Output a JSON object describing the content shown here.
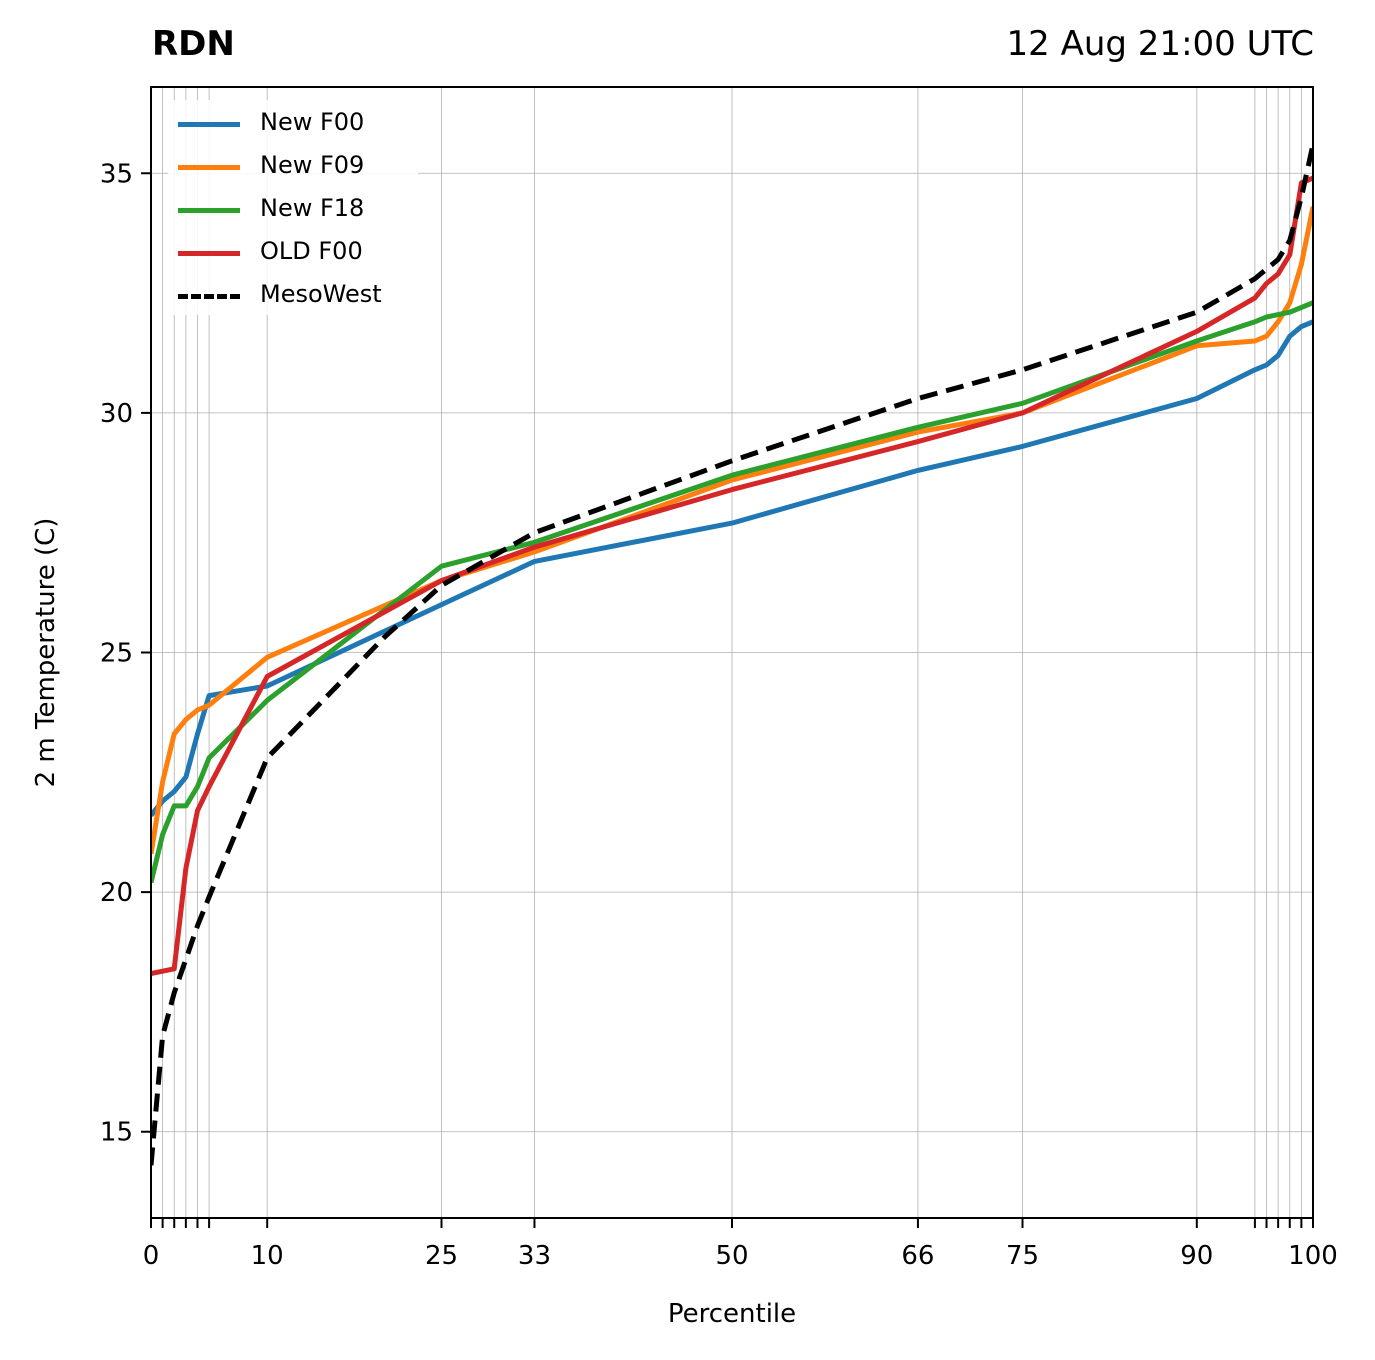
{
  "title_left": "RDN",
  "title_right": "12 Aug 21:00 UTC",
  "chart_data": {
    "type": "line",
    "xlabel": "Percentile",
    "ylabel": "2 m Temperature (C)",
    "xlim": [
      0,
      100
    ],
    "ylim": [
      13.2,
      36.8
    ],
    "xticks": [
      0,
      10,
      25,
      33,
      50,
      66,
      75,
      90,
      100
    ],
    "xtick_labels": [
      "0",
      "10",
      "25",
      "33",
      "50",
      "66",
      "75",
      "90",
      "100"
    ],
    "minor_xticks": [
      1,
      2,
      3,
      4,
      5,
      95,
      96,
      97,
      98,
      99
    ],
    "yticks": [
      15,
      20,
      25,
      30,
      35
    ],
    "ytick_labels": [
      "15",
      "20",
      "25",
      "30",
      "35"
    ],
    "grid": true,
    "legend_position": "top-left",
    "series": [
      {
        "name": "New F00",
        "color": "#1f77b4",
        "dashed": false,
        "x": [
          0,
          1,
          2,
          3,
          4,
          5,
          10,
          25,
          33,
          50,
          66,
          75,
          90,
          95,
          96,
          97,
          98,
          99,
          100
        ],
        "y": [
          21.6,
          21.9,
          22.1,
          22.4,
          23.3,
          24.1,
          24.3,
          26.0,
          26.9,
          27.7,
          28.8,
          29.3,
          30.3,
          30.9,
          31.0,
          31.2,
          31.6,
          31.8,
          31.9
        ]
      },
      {
        "name": "New F09",
        "color": "#ff7f0e",
        "dashed": false,
        "x": [
          0,
          1,
          2,
          3,
          4,
          5,
          10,
          25,
          33,
          50,
          66,
          75,
          90,
          95,
          96,
          97,
          98,
          99,
          100
        ],
        "y": [
          20.8,
          22.3,
          23.3,
          23.6,
          23.8,
          23.9,
          24.9,
          26.5,
          27.1,
          28.6,
          29.6,
          30.0,
          31.4,
          31.5,
          31.6,
          31.9,
          32.3,
          33.1,
          34.3
        ]
      },
      {
        "name": "New F18",
        "color": "#2ca02c",
        "dashed": false,
        "x": [
          0,
          1,
          2,
          3,
          4,
          5,
          10,
          25,
          33,
          50,
          66,
          75,
          90,
          95,
          96,
          97,
          98,
          99,
          100
        ],
        "y": [
          20.2,
          21.2,
          21.8,
          21.8,
          22.2,
          22.8,
          24.0,
          26.8,
          27.3,
          28.7,
          29.7,
          30.2,
          31.5,
          31.9,
          32.0,
          32.05,
          32.1,
          32.2,
          32.3
        ]
      },
      {
        "name": "OLD F00",
        "color": "#d62728",
        "dashed": false,
        "x": [
          0,
          1,
          2,
          3,
          4,
          5,
          10,
          25,
          33,
          50,
          66,
          75,
          90,
          95,
          96,
          97,
          98,
          99,
          100
        ],
        "y": [
          18.3,
          18.35,
          18.4,
          20.5,
          21.7,
          22.2,
          24.5,
          26.5,
          27.2,
          28.4,
          29.4,
          30.0,
          31.7,
          32.4,
          32.7,
          32.9,
          33.3,
          34.8,
          34.9
        ]
      },
      {
        "name": "MesoWest",
        "color": "#000000",
        "dashed": true,
        "x": [
          0,
          1,
          2,
          3,
          4,
          5,
          10,
          20,
          25,
          33,
          50,
          66,
          75,
          90,
          95,
          96,
          97,
          98,
          99,
          100
        ],
        "y": [
          14.3,
          17.0,
          17.9,
          18.6,
          19.3,
          19.9,
          22.8,
          25.3,
          26.4,
          27.5,
          29.0,
          30.3,
          30.9,
          32.1,
          32.8,
          33.0,
          33.2,
          33.6,
          34.5,
          35.6
        ]
      }
    ]
  }
}
